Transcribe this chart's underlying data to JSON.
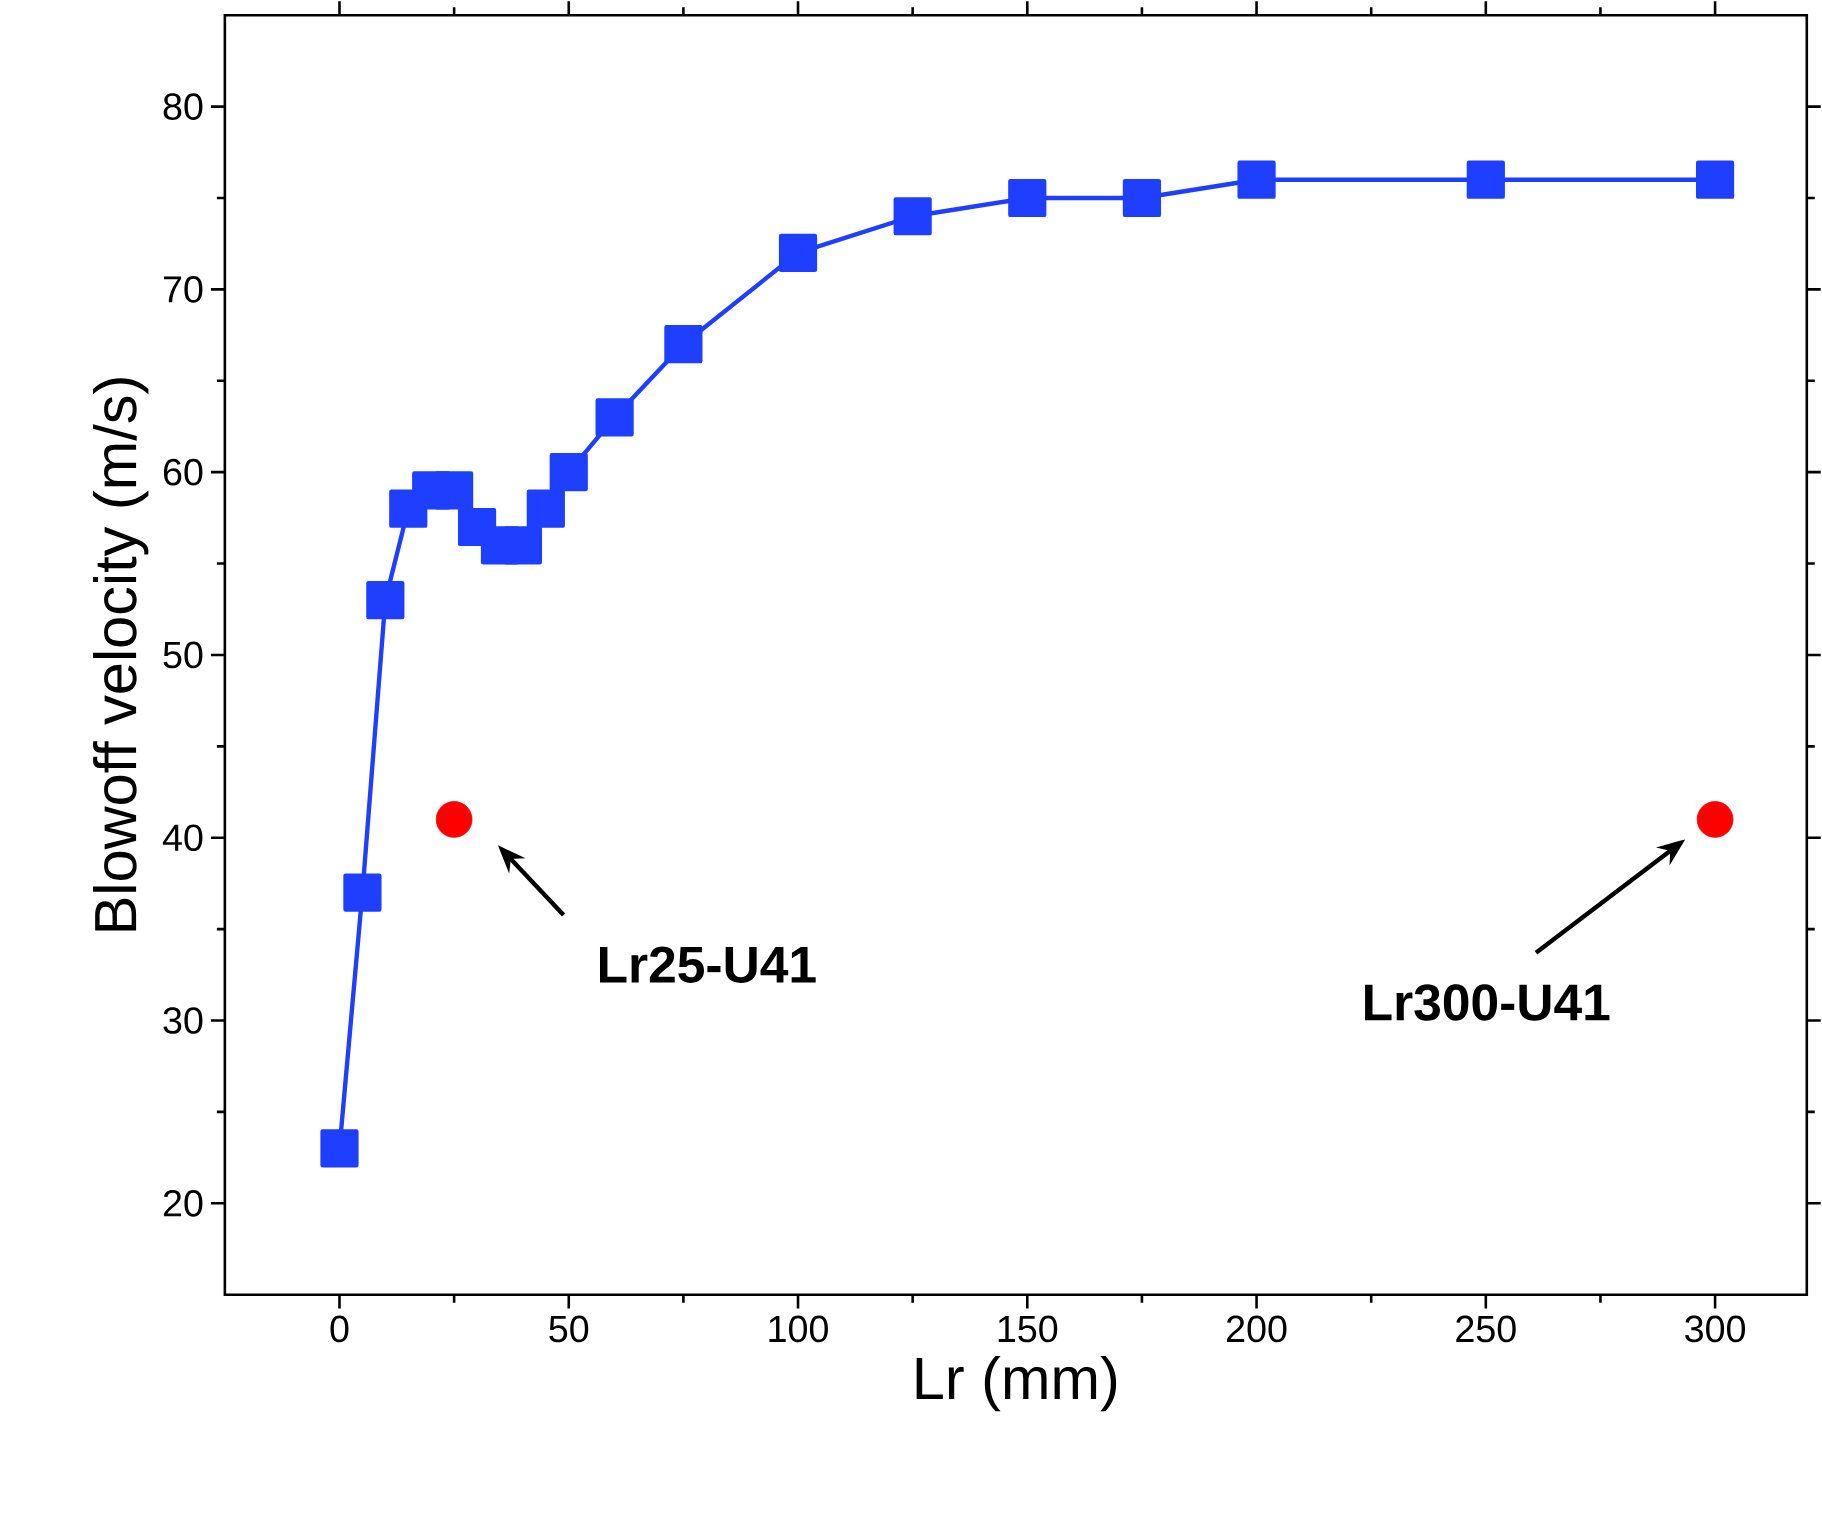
{
  "chart_data": {
    "type": "line",
    "xlabel": "Lr (mm)",
    "ylabel": "Blowoff velocity (m/s)",
    "xlim": [
      -25,
      320
    ],
    "ylim": [
      15,
      85
    ],
    "xticks": [
      0,
      50,
      100,
      150,
      200,
      250,
      300
    ],
    "yticks": [
      20,
      30,
      40,
      50,
      60,
      70,
      80
    ],
    "series": [
      {
        "color": "#1f3fff",
        "marker": "square",
        "line_style": "solid",
        "x": [
          0,
          5,
          10,
          15,
          20,
          25,
          30,
          35,
          40,
          45,
          50,
          60,
          75,
          100,
          125,
          150,
          175,
          200,
          250,
          300
        ],
        "values": [
          23,
          37,
          53,
          58,
          59,
          59,
          57,
          56,
          56,
          58,
          60,
          63,
          67,
          72,
          74,
          75,
          75,
          76,
          76,
          76
        ]
      },
      {
        "type": "scatter",
        "color": "#ff0000",
        "marker": "circle",
        "x": [
          25,
          300
        ],
        "values": [
          41,
          41
        ]
      }
    ],
    "annotations": [
      "Lr25-U41",
      "Lr300-U41"
    ]
  }
}
